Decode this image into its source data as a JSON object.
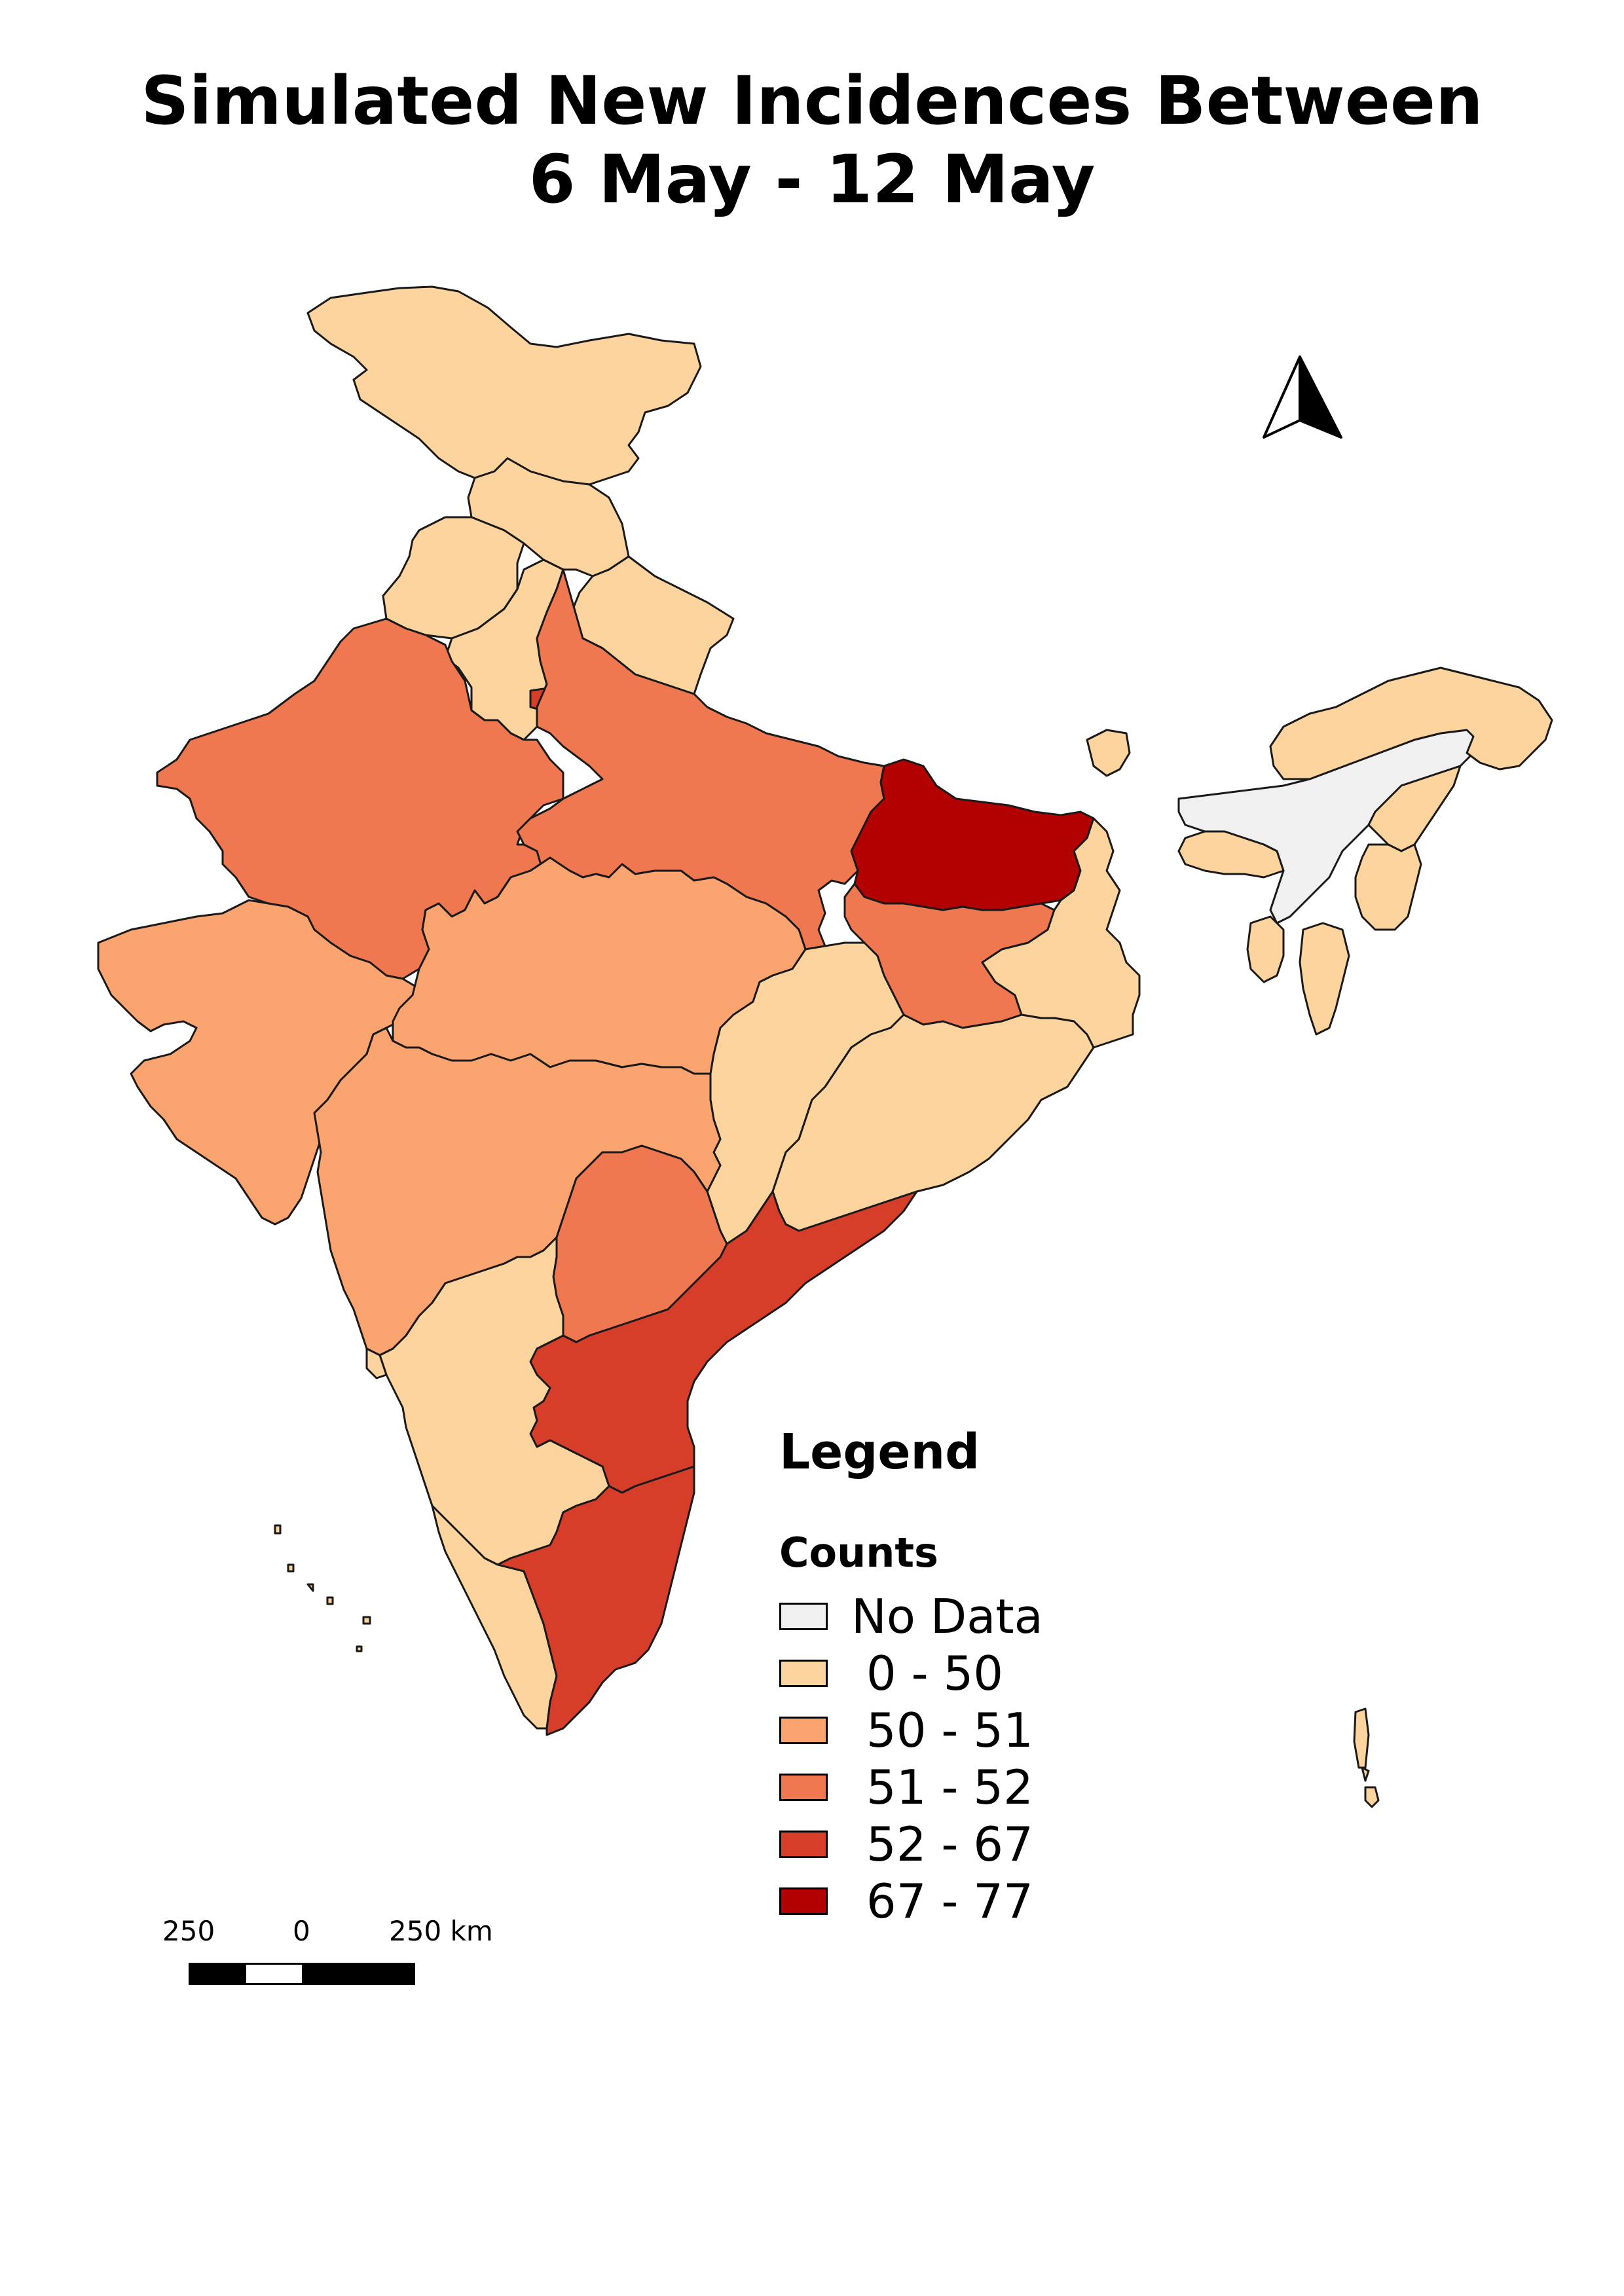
{
  "title": {
    "line1": "Simulated New Incidences Between",
    "line2": "6 May - 12 May"
  },
  "legend": {
    "heading": "Legend",
    "subheading": "Counts",
    "items": [
      {
        "label": "No Data",
        "color": "#f0f0f0"
      },
      {
        "label": " 0 - 50",
        "color": "#fdd49e"
      },
      {
        "label": " 50 - 51",
        "color": "#fca46f"
      },
      {
        "label": " 51 - 52",
        "color": "#f07850"
      },
      {
        "label": " 52 - 67",
        "color": "#d73e2a"
      },
      {
        "label": " 67 - 77",
        "color": "#b30000"
      }
    ]
  },
  "scale_bar": {
    "labels": [
      "250",
      "0",
      "250 km"
    ],
    "segment_colors": [
      "#000000",
      "#ffffff",
      "#000000",
      "#000000"
    ]
  },
  "north_arrow": {
    "icon": "north-arrow-icon"
  },
  "map_layers": {
    "regions": [
      {
        "name": "jammu-kashmir",
        "class": "0 - 50"
      },
      {
        "name": "himachal-pradesh",
        "class": "0 - 50"
      },
      {
        "name": "punjab",
        "class": "0 - 50"
      },
      {
        "name": "uttarakhand",
        "class": "0 - 50"
      },
      {
        "name": "haryana",
        "class": "0 - 50"
      },
      {
        "name": "delhi",
        "class": "52 - 67"
      },
      {
        "name": "rajasthan",
        "class": "51 - 52"
      },
      {
        "name": "uttar-pradesh",
        "class": "51 - 52"
      },
      {
        "name": "bihar",
        "class": "67 - 77"
      },
      {
        "name": "gujarat",
        "class": "50 - 51"
      },
      {
        "name": "madhya-pradesh",
        "class": "50 - 51"
      },
      {
        "name": "jharkhand",
        "class": "51 - 52"
      },
      {
        "name": "west-bengal",
        "class": "0 - 50"
      },
      {
        "name": "sikkim",
        "class": "0 - 50"
      },
      {
        "name": "chhattisgarh",
        "class": "0 - 50"
      },
      {
        "name": "odisha",
        "class": "0 - 50"
      },
      {
        "name": "maharashtra",
        "class": "50 - 51"
      },
      {
        "name": "telangana",
        "class": "51 - 52"
      },
      {
        "name": "andhra-pradesh",
        "class": "52 - 67"
      },
      {
        "name": "karnataka",
        "class": "0 - 50"
      },
      {
        "name": "goa",
        "class": "0 - 50"
      },
      {
        "name": "kerala",
        "class": "0 - 50"
      },
      {
        "name": "tamil-nadu",
        "class": "52 - 67"
      },
      {
        "name": "assam",
        "class": "No Data"
      },
      {
        "name": "arunachal-pradesh",
        "class": "0 - 50"
      },
      {
        "name": "meghalaya",
        "class": "0 - 50"
      },
      {
        "name": "nagaland",
        "class": "0 - 50"
      },
      {
        "name": "manipur",
        "class": "0 - 50"
      },
      {
        "name": "mizoram",
        "class": "0 - 50"
      },
      {
        "name": "tripura",
        "class": "0 - 50"
      },
      {
        "name": "andaman-nicobar",
        "class": "0 - 50"
      },
      {
        "name": "lakshadweep",
        "class": "0 - 50"
      }
    ]
  }
}
